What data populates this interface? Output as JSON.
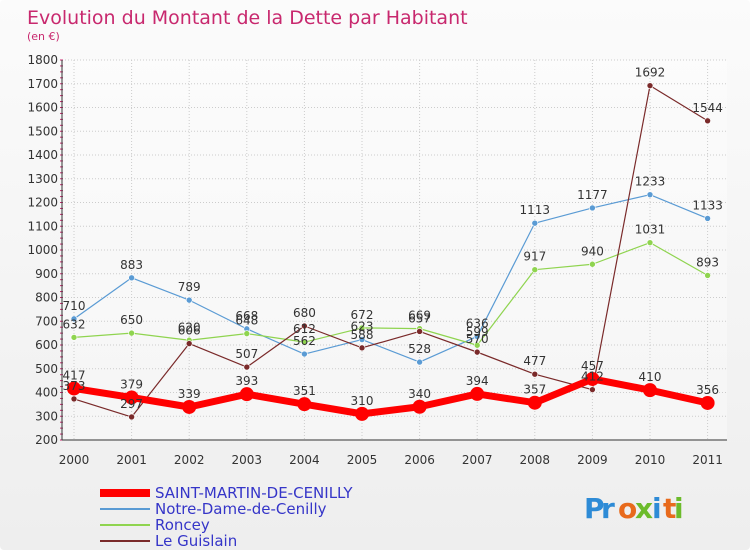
{
  "chart_data": {
    "type": "line",
    "title": "Evolution du Montant de la Dette par Habitant",
    "subtitle": "(en €)",
    "x": [
      "2000",
      "2001",
      "2002",
      "2003",
      "2004",
      "2005",
      "2006",
      "2007",
      "2008",
      "2009",
      "2010",
      "2011"
    ],
    "ylim": [
      200,
      1800
    ],
    "yticks": [
      200,
      300,
      400,
      500,
      600,
      700,
      800,
      900,
      1000,
      1100,
      1200,
      1300,
      1400,
      1500,
      1600,
      1700,
      1800
    ],
    "grid": true,
    "legend_position": "bottom-left",
    "series": [
      {
        "name": "SAINT-MARTIN-DE-CENILLY",
        "color": "#ff0000",
        "values": [
          417,
          379,
          339,
          393,
          351,
          310,
          340,
          394,
          357,
          457,
          410,
          356
        ]
      },
      {
        "name": "Notre-Dame-de-Cenilly",
        "color": "#5a9bd4",
        "values": [
          710,
          883,
          789,
          668,
          562,
          623,
          528,
          636,
          1113,
          1177,
          1233,
          1133
        ]
      },
      {
        "name": "Roncey",
        "color": "#8fd44f",
        "values": [
          632,
          650,
          620,
          648,
          612,
          672,
          669,
          599,
          917,
          940,
          1031,
          893
        ]
      },
      {
        "name": "Le Guislain",
        "color": "#7a2a2a",
        "values": [
          373,
          297,
          606,
          507,
          680,
          588,
          657,
          570,
          477,
          412,
          1692,
          1544
        ]
      }
    ],
    "brand": "Proxiti"
  }
}
